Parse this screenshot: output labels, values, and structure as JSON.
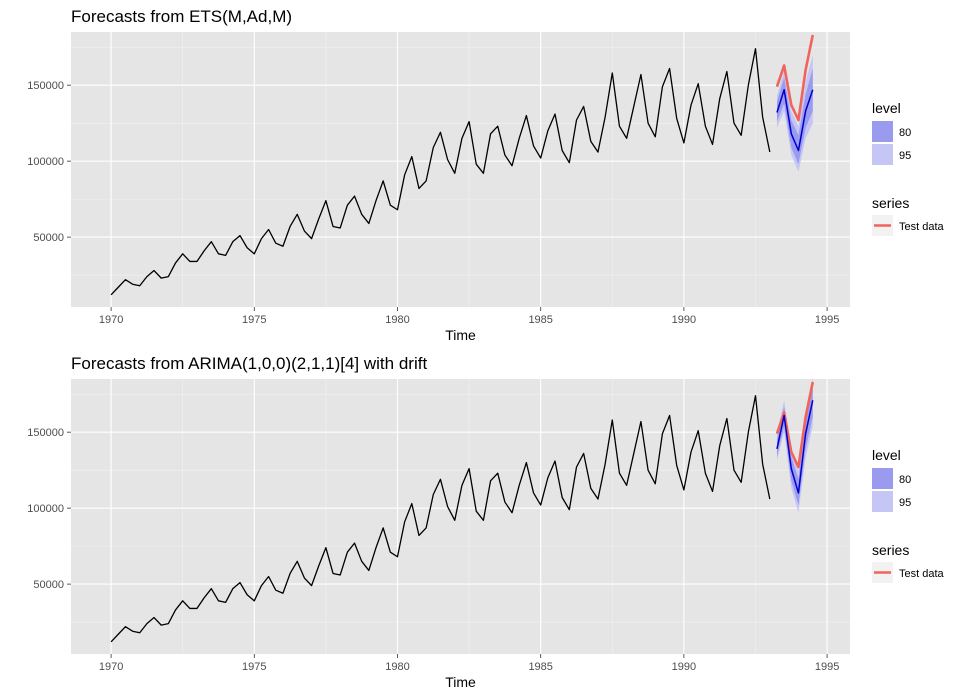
{
  "colors": {
    "panel_bg": "#e5e5e5",
    "grid_major": "#ffffff",
    "history_line": "#000000",
    "forecast_line": "#0000cc",
    "band80": "#9a9aee",
    "band95": "#c6c6f6",
    "test_line": "#f0645c"
  },
  "chart_data": [
    {
      "type": "line",
      "title": "Forecasts from ETS(M,Ad,M)",
      "xlabel": "Time",
      "ylabel": "",
      "xlim": [
        1968.6,
        1995.8
      ],
      "ylim": [
        4000,
        185000
      ],
      "x_ticks": [
        1970,
        1975,
        1980,
        1985,
        1990,
        1995
      ],
      "x_tick_labels": [
        "1970",
        "1975",
        "1980",
        "1985",
        "1990",
        "1995"
      ],
      "y_ticks": [
        50000,
        100000,
        150000
      ],
      "y_tick_labels": [
        "50000",
        "100000",
        "150000"
      ],
      "grid": true,
      "legend_position": "right",
      "legend": {
        "level_title": "level",
        "level_items": [
          {
            "label": "80",
            "color": "#9a9aee"
          },
          {
            "label": "95",
            "color": "#c6c6f6"
          }
        ],
        "series_title": "series",
        "series_items": [
          {
            "label": "Test data",
            "color": "#f0645c"
          }
        ]
      },
      "history": {
        "x_start": 1970.0,
        "step": 0.25,
        "values": [
          12000,
          17000,
          22000,
          19000,
          18000,
          24000,
          28000,
          23000,
          24000,
          33000,
          39000,
          34000,
          34000,
          41000,
          47000,
          39000,
          38000,
          47000,
          51000,
          43000,
          39000,
          49000,
          55000,
          46000,
          44000,
          57000,
          65000,
          54000,
          49000,
          62000,
          74000,
          57000,
          56000,
          71000,
          77000,
          65000,
          59000,
          74000,
          87000,
          71000,
          68000,
          91000,
          103000,
          82000,
          87000,
          109000,
          119000,
          101000,
          92000,
          115000,
          126000,
          98000,
          92000,
          118000,
          123000,
          104000,
          97000,
          115000,
          130000,
          110000,
          102000,
          120000,
          131000,
          107000,
          99000,
          127000,
          136000,
          113000,
          106000,
          129000,
          158000,
          123000,
          115000,
          136000,
          157000,
          125000,
          116000,
          149000,
          161000,
          128000,
          112000,
          137000,
          151000,
          123000,
          111000,
          141000,
          159000,
          125000,
          117000,
          150000,
          174000,
          129000,
          106000
        ]
      },
      "forecast": {
        "x": [
          1993.25,
          1993.5,
          1993.75,
          1994.0,
          1994.25,
          1994.5
        ],
        "mean": [
          132000,
          147000,
          118000,
          107000,
          133000,
          147000
        ],
        "lo80": [
          126000,
          138000,
          109000,
          98000,
          122000,
          133000
        ],
        "hi80": [
          139000,
          155000,
          127000,
          117000,
          144000,
          161000
        ],
        "lo95": [
          122000,
          133000,
          104000,
          93000,
          115000,
          125000
        ],
        "hi95": [
          143000,
          160000,
          133000,
          123000,
          152000,
          170000
        ]
      },
      "test": {
        "x": [
          1993.25,
          1993.5,
          1993.75,
          1994.0,
          1994.25,
          1994.5
        ],
        "values": [
          149000,
          163000,
          137000,
          127000,
          160000,
          183000
        ]
      }
    },
    {
      "type": "line",
      "title": "Forecasts from ARIMA(1,0,0)(2,1,1)[4] with drift",
      "xlabel": "Time",
      "ylabel": "",
      "xlim": [
        1968.6,
        1995.8
      ],
      "ylim": [
        4000,
        185000
      ],
      "x_ticks": [
        1970,
        1975,
        1980,
        1985,
        1990,
        1995
      ],
      "x_tick_labels": [
        "1970",
        "1975",
        "1980",
        "1985",
        "1990",
        "1995"
      ],
      "y_ticks": [
        50000,
        100000,
        150000
      ],
      "y_tick_labels": [
        "50000",
        "100000",
        "150000"
      ],
      "grid": true,
      "legend_position": "right",
      "legend": {
        "level_title": "level",
        "level_items": [
          {
            "label": "80",
            "color": "#9a9aee"
          },
          {
            "label": "95",
            "color": "#c6c6f6"
          }
        ],
        "series_title": "series",
        "series_items": [
          {
            "label": "Test data",
            "color": "#f0645c"
          }
        ]
      },
      "history": {
        "x_start": 1970.0,
        "step": 0.25,
        "values": [
          12000,
          17000,
          22000,
          19000,
          18000,
          24000,
          28000,
          23000,
          24000,
          33000,
          39000,
          34000,
          34000,
          41000,
          47000,
          39000,
          38000,
          47000,
          51000,
          43000,
          39000,
          49000,
          55000,
          46000,
          44000,
          57000,
          65000,
          54000,
          49000,
          62000,
          74000,
          57000,
          56000,
          71000,
          77000,
          65000,
          59000,
          74000,
          87000,
          71000,
          68000,
          91000,
          103000,
          82000,
          87000,
          109000,
          119000,
          101000,
          92000,
          115000,
          126000,
          98000,
          92000,
          118000,
          123000,
          104000,
          97000,
          115000,
          130000,
          110000,
          102000,
          120000,
          131000,
          107000,
          99000,
          127000,
          136000,
          113000,
          106000,
          129000,
          158000,
          123000,
          115000,
          136000,
          157000,
          125000,
          116000,
          149000,
          161000,
          128000,
          112000,
          137000,
          151000,
          123000,
          111000,
          141000,
          159000,
          125000,
          117000,
          150000,
          174000,
          129000,
          106000
        ]
      },
      "forecast": {
        "x": [
          1993.25,
          1993.5,
          1993.75,
          1994.0,
          1994.25,
          1994.5
        ],
        "mean": [
          139000,
          161000,
          126000,
          110000,
          149000,
          171000
        ],
        "lo80": [
          134000,
          154000,
          118000,
          102000,
          139000,
          160000
        ],
        "hi80": [
          145000,
          167000,
          134000,
          119000,
          158000,
          181000
        ],
        "lo95": [
          131000,
          150000,
          113000,
          97000,
          133000,
          154000
        ],
        "hi95": [
          149000,
          171000,
          138000,
          124000,
          163000,
          186000
        ]
      },
      "test": {
        "x": [
          1993.25,
          1993.5,
          1993.75,
          1994.0,
          1994.25,
          1994.5
        ],
        "values": [
          149000,
          163000,
          137000,
          127000,
          160000,
          183000
        ]
      }
    }
  ]
}
